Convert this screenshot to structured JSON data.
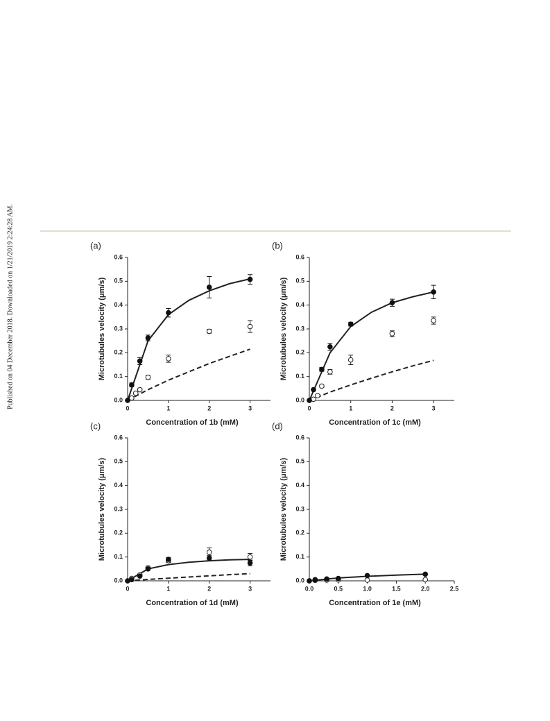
{
  "side_note": "Published on 04 December 2018. Downloaded on 1/21/2019 2:24:28 AM.",
  "chart_data": [
    {
      "type": "scatter",
      "panel_label": "(a)",
      "xlabel": "Concentration of 1b (mM)",
      "ylabel": "Microtubules velocity (μm/s)",
      "xlim": [
        0,
        3.5
      ],
      "ylim": [
        0,
        0.6
      ],
      "xticks": [
        0,
        1,
        2,
        3
      ],
      "yticks": [
        {
          "value": 0,
          "label": "0.0"
        },
        0.1,
        0.2,
        0.3,
        0.4,
        0.5,
        0.6
      ],
      "series": [
        {
          "mode": "line",
          "line_style": "solid",
          "color": "#222222",
          "x": [
            0,
            0.5,
            1,
            1.5,
            2,
            2.5,
            3
          ],
          "values": [
            0,
            0.25,
            0.36,
            0.42,
            0.46,
            0.49,
            0.51
          ]
        },
        {
          "mode": "line",
          "line_style": "dashed",
          "color": "#222222",
          "x": [
            0,
            0.5,
            1,
            1.5,
            2,
            2.5,
            3
          ],
          "values": [
            0,
            0.045,
            0.085,
            0.12,
            0.155,
            0.185,
            0.215
          ]
        },
        {
          "mode": "markers",
          "marker": "open",
          "color": "#222222",
          "x": [
            0.1,
            0.2,
            0.3,
            0.5,
            1,
            2,
            3
          ],
          "values": [
            0.01,
            0.03,
            0.045,
            0.097,
            0.175,
            0.29,
            0.31
          ],
          "errors": [
            0.005,
            0.005,
            0.005,
            0.008,
            0.015,
            0.008,
            0.025
          ]
        },
        {
          "mode": "markers",
          "marker": "filled",
          "color": "#111111",
          "x": [
            0,
            0.1,
            0.3,
            0.5,
            1,
            2,
            3
          ],
          "values": [
            0,
            0.065,
            0.165,
            0.262,
            0.368,
            0.475,
            0.508
          ],
          "errors": [
            0,
            0.008,
            0.015,
            0.012,
            0.018,
            0.045,
            0.02
          ]
        }
      ]
    },
    {
      "type": "scatter",
      "panel_label": "(b)",
      "xlabel": "Concentration of 1c (mM)",
      "ylabel": "Microtubules velocity (μm/s)",
      "xlim": [
        0,
        3.5
      ],
      "ylim": [
        0,
        0.6
      ],
      "xticks": [
        0,
        1,
        2,
        3
      ],
      "yticks": [
        {
          "value": 0,
          "label": "0.0"
        },
        0.1,
        0.2,
        0.3,
        0.4,
        0.5,
        0.6
      ],
      "series": [
        {
          "mode": "line",
          "line_style": "solid",
          "color": "#222222",
          "x": [
            0,
            0.5,
            1,
            1.5,
            2,
            2.5,
            3
          ],
          "values": [
            0,
            0.2,
            0.31,
            0.37,
            0.41,
            0.435,
            0.455
          ]
        },
        {
          "mode": "line",
          "line_style": "dashed",
          "color": "#222222",
          "x": [
            0,
            0.5,
            1,
            1.5,
            2,
            2.5,
            3
          ],
          "values": [
            0,
            0.035,
            0.065,
            0.093,
            0.12,
            0.145,
            0.168
          ]
        },
        {
          "mode": "markers",
          "marker": "open",
          "color": "#222222",
          "x": [
            0.1,
            0.2,
            0.3,
            0.5,
            1,
            2,
            3
          ],
          "values": [
            0.005,
            0.02,
            0.06,
            0.12,
            0.17,
            0.28,
            0.335
          ],
          "errors": [
            0.003,
            0.005,
            0.005,
            0.01,
            0.02,
            0.012,
            0.015
          ]
        },
        {
          "mode": "markers",
          "marker": "filled",
          "color": "#111111",
          "x": [
            0,
            0.1,
            0.3,
            0.5,
            1,
            2,
            3
          ],
          "values": [
            0,
            0.045,
            0.13,
            0.225,
            0.32,
            0.41,
            0.455
          ],
          "errors": [
            0,
            0.005,
            0.008,
            0.015,
            0.008,
            0.015,
            0.028
          ]
        }
      ]
    },
    {
      "type": "scatter",
      "panel_label": "(c)",
      "xlabel": "Concentration of 1d (mM)",
      "ylabel": "Microtubules velocity (μm/s)",
      "xlim": [
        0,
        3.5
      ],
      "ylim": [
        0,
        0.6
      ],
      "xticks": [
        0,
        1,
        2,
        3
      ],
      "yticks": [
        {
          "value": 0,
          "label": "0.0"
        },
        0.1,
        0.2,
        0.3,
        0.4,
        0.5,
        0.6
      ],
      "series": [
        {
          "mode": "line",
          "line_style": "solid",
          "color": "#222222",
          "x": [
            0,
            0.5,
            1,
            1.5,
            2,
            2.5,
            3
          ],
          "values": [
            0,
            0.05,
            0.068,
            0.078,
            0.084,
            0.088,
            0.09
          ]
        },
        {
          "mode": "line",
          "line_style": "dashed",
          "color": "#222222",
          "x": [
            0,
            0.5,
            1,
            1.5,
            2,
            2.5,
            3
          ],
          "values": [
            0,
            0.006,
            0.011,
            0.016,
            0.021,
            0.026,
            0.03
          ]
        },
        {
          "mode": "markers",
          "marker": "open",
          "color": "#222222",
          "x": [
            0,
            0.1,
            0.3,
            0.5,
            1,
            2,
            3
          ],
          "values": [
            0,
            0.01,
            0.025,
            0.055,
            0.085,
            0.12,
            0.1
          ],
          "errors": [
            0,
            0.003,
            0.004,
            0.004,
            0.008,
            0.018,
            0.015
          ]
        },
        {
          "mode": "markers",
          "marker": "filled",
          "color": "#111111",
          "x": [
            0,
            0.1,
            0.3,
            0.5,
            1,
            2,
            3
          ],
          "values": [
            0,
            0.005,
            0.02,
            0.05,
            0.09,
            0.095,
            0.075
          ],
          "errors": [
            0,
            0.003,
            0.004,
            0.004,
            0.008,
            0.012,
            0.012
          ]
        }
      ]
    },
    {
      "type": "scatter",
      "panel_label": "(d)",
      "xlabel": "Concentration of 1e (mM)",
      "ylabel": "Microtubules velocity (μm/s)",
      "xlim": [
        0,
        2.5
      ],
      "ylim": [
        0,
        0.6
      ],
      "xticks": [
        {
          "value": 0,
          "label": "0.0"
        },
        0.5,
        {
          "value": 1,
          "label": "1.0"
        },
        1.5,
        {
          "value": 2,
          "label": "2.0"
        },
        2.5
      ],
      "yticks": [
        {
          "value": 0,
          "label": "0.0"
        },
        0.1,
        0.2,
        0.3,
        0.4,
        0.5,
        0.6
      ],
      "series": [
        {
          "mode": "line",
          "line_style": "solid",
          "color": "#222222",
          "x": [
            0,
            0.5,
            1,
            1.5,
            2
          ],
          "values": [
            0,
            0.012,
            0.019,
            0.024,
            0.028
          ]
        },
        {
          "mode": "markers",
          "marker": "open",
          "color": "#222222",
          "x": [
            0,
            0.1,
            0.3,
            0.5,
            1,
            2
          ],
          "values": [
            0,
            0.002,
            0.003,
            0.004,
            0.003,
            0.005
          ],
          "errors": [
            0,
            0.001,
            0.001,
            0.001,
            0.001,
            0.002
          ]
        },
        {
          "mode": "markers",
          "marker": "filled",
          "color": "#111111",
          "x": [
            0,
            0.1,
            0.3,
            0.5,
            1,
            2
          ],
          "values": [
            0,
            0.005,
            0.008,
            0.01,
            0.022,
            0.028
          ],
          "errors": [
            0,
            0.002,
            0.002,
            0.002,
            0.003,
            0.003
          ]
        }
      ]
    }
  ]
}
